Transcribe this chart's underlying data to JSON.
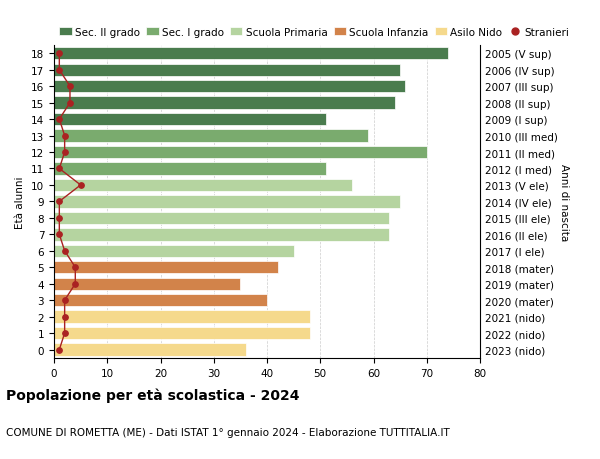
{
  "ages": [
    18,
    17,
    16,
    15,
    14,
    13,
    12,
    11,
    10,
    9,
    8,
    7,
    6,
    5,
    4,
    3,
    2,
    1,
    0
  ],
  "right_labels": [
    "2005 (V sup)",
    "2006 (IV sup)",
    "2007 (III sup)",
    "2008 (II sup)",
    "2009 (I sup)",
    "2010 (III med)",
    "2011 (II med)",
    "2012 (I med)",
    "2013 (V ele)",
    "2014 (IV ele)",
    "2015 (III ele)",
    "2016 (II ele)",
    "2017 (I ele)",
    "2018 (mater)",
    "2019 (mater)",
    "2020 (mater)",
    "2021 (nido)",
    "2022 (nido)",
    "2023 (nido)"
  ],
  "bar_values": [
    74,
    65,
    66,
    64,
    51,
    59,
    70,
    51,
    56,
    65,
    63,
    63,
    45,
    42,
    35,
    40,
    48,
    48,
    36
  ],
  "bar_colors": [
    "#4a7c4e",
    "#4a7c4e",
    "#4a7c4e",
    "#4a7c4e",
    "#4a7c4e",
    "#7aab6e",
    "#7aab6e",
    "#7aab6e",
    "#b5d4a0",
    "#b5d4a0",
    "#b5d4a0",
    "#b5d4a0",
    "#b5d4a0",
    "#d2834a",
    "#d2834a",
    "#d2834a",
    "#f5d98c",
    "#f5d98c",
    "#f5d98c"
  ],
  "stranieri_values": [
    1,
    1,
    3,
    3,
    1,
    2,
    2,
    1,
    5,
    1,
    1,
    1,
    2,
    4,
    4,
    2,
    2,
    2,
    1
  ],
  "stranieri_color": "#aa2222",
  "ylabel": "Età alunni",
  "right_ylabel": "Anni di nascita",
  "xlim": [
    0,
    80
  ],
  "xticks": [
    0,
    10,
    20,
    30,
    40,
    50,
    60,
    70,
    80
  ],
  "title": "Popolazione per età scolastica - 2024",
  "subtitle": "COMUNE DI ROMETTA (ME) - Dati ISTAT 1° gennaio 2024 - Elaborazione TUTTITALIA.IT",
  "legend_labels": [
    "Sec. II grado",
    "Sec. I grado",
    "Scuola Primaria",
    "Scuola Infanzia",
    "Asilo Nido",
    "Stranieri"
  ],
  "legend_colors": [
    "#4a7c4e",
    "#7aab6e",
    "#b5d4a0",
    "#d2834a",
    "#f5d98c",
    "#aa2222"
  ],
  "bar_height": 0.75,
  "grid_color": "#cccccc",
  "bg_color": "#ffffff",
  "title_fontsize": 10,
  "subtitle_fontsize": 7.5,
  "axis_fontsize": 7.5,
  "tick_fontsize": 7.5,
  "legend_fontsize": 7.5
}
